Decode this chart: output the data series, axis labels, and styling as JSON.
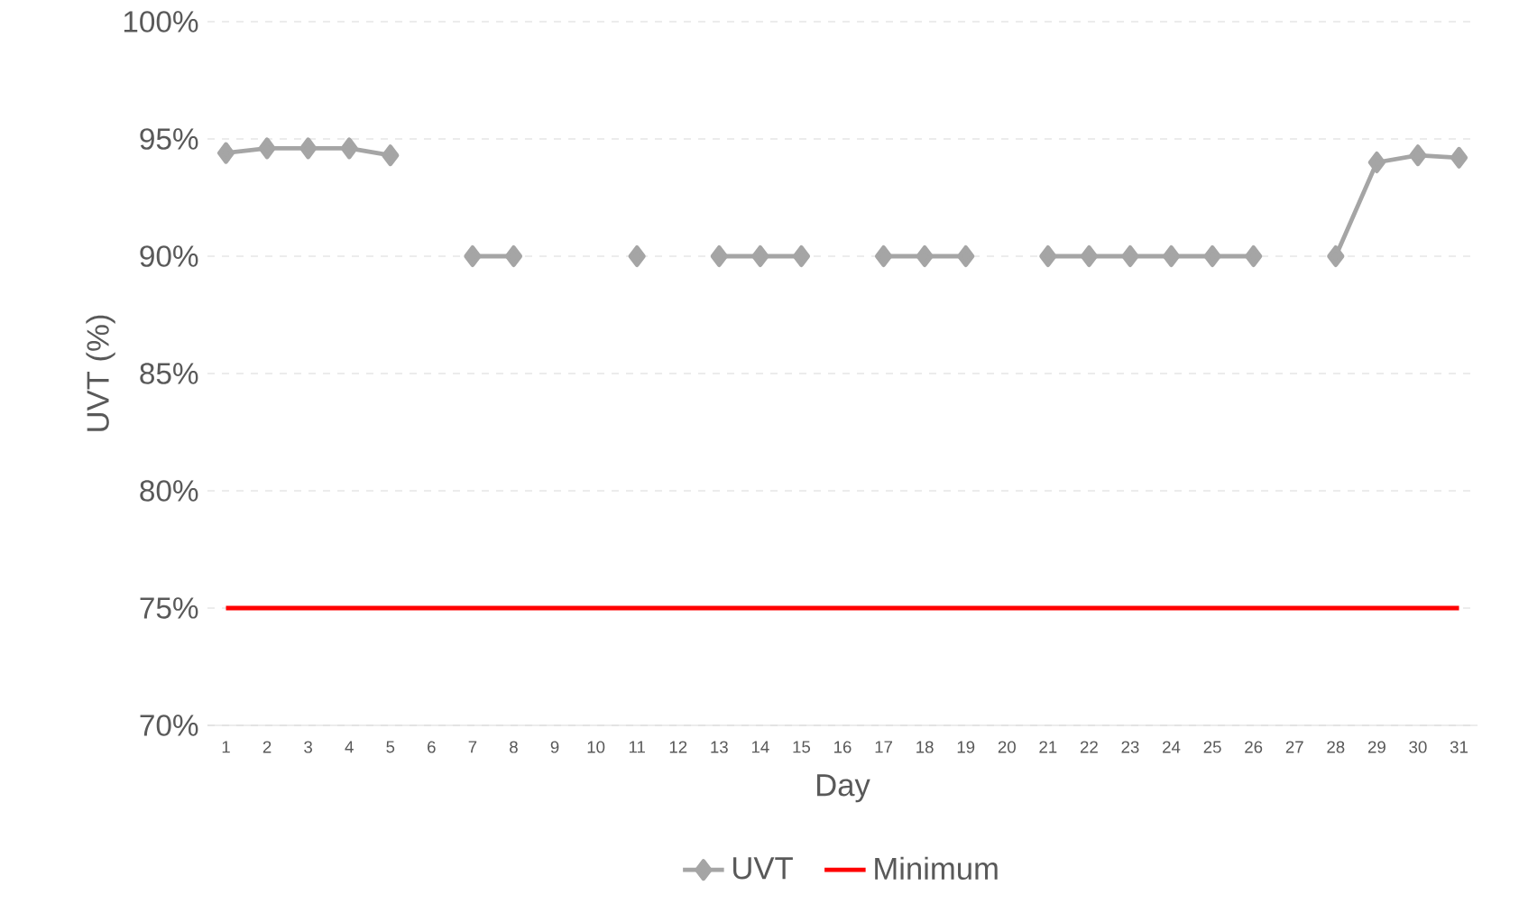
{
  "chart_data": {
    "type": "line",
    "xlabel": "Day",
    "ylabel": "UVT (%)",
    "categories": [
      "1",
      "2",
      "3",
      "4",
      "5",
      "6",
      "7",
      "8",
      "9",
      "10",
      "11",
      "12",
      "13",
      "14",
      "15",
      "16",
      "17",
      "18",
      "19",
      "20",
      "21",
      "22",
      "23",
      "24",
      "25",
      "26",
      "27",
      "28",
      "29",
      "30",
      "31"
    ],
    "series": [
      {
        "name": "UVT",
        "color": "#a5a5a5",
        "marker": "diamond",
        "values": [
          94.4,
          94.6,
          94.6,
          94.6,
          94.3,
          null,
          90,
          90,
          null,
          null,
          90,
          null,
          90,
          90,
          90,
          null,
          90,
          90,
          90,
          null,
          90,
          90,
          90,
          90,
          90,
          90,
          null,
          90,
          94.0,
          94.3,
          94.2
        ]
      },
      {
        "name": "Minimum",
        "color": "#ff0000",
        "marker": "none",
        "values": [
          75,
          75,
          75,
          75,
          75,
          75,
          75,
          75,
          75,
          75,
          75,
          75,
          75,
          75,
          75,
          75,
          75,
          75,
          75,
          75,
          75,
          75,
          75,
          75,
          75,
          75,
          75,
          75,
          75,
          75,
          75
        ]
      }
    ],
    "ylim": [
      70,
      100
    ],
    "yticks": [
      {
        "value": 70,
        "label": "70%"
      },
      {
        "value": 75,
        "label": "75%"
      },
      {
        "value": 80,
        "label": "80%"
      },
      {
        "value": 85,
        "label": "85%"
      },
      {
        "value": 90,
        "label": "90%"
      },
      {
        "value": 95,
        "label": "95%"
      },
      {
        "value": 100,
        "label": "100%"
      }
    ],
    "grid": "y",
    "legend": "bottom",
    "line_style": "solid"
  }
}
